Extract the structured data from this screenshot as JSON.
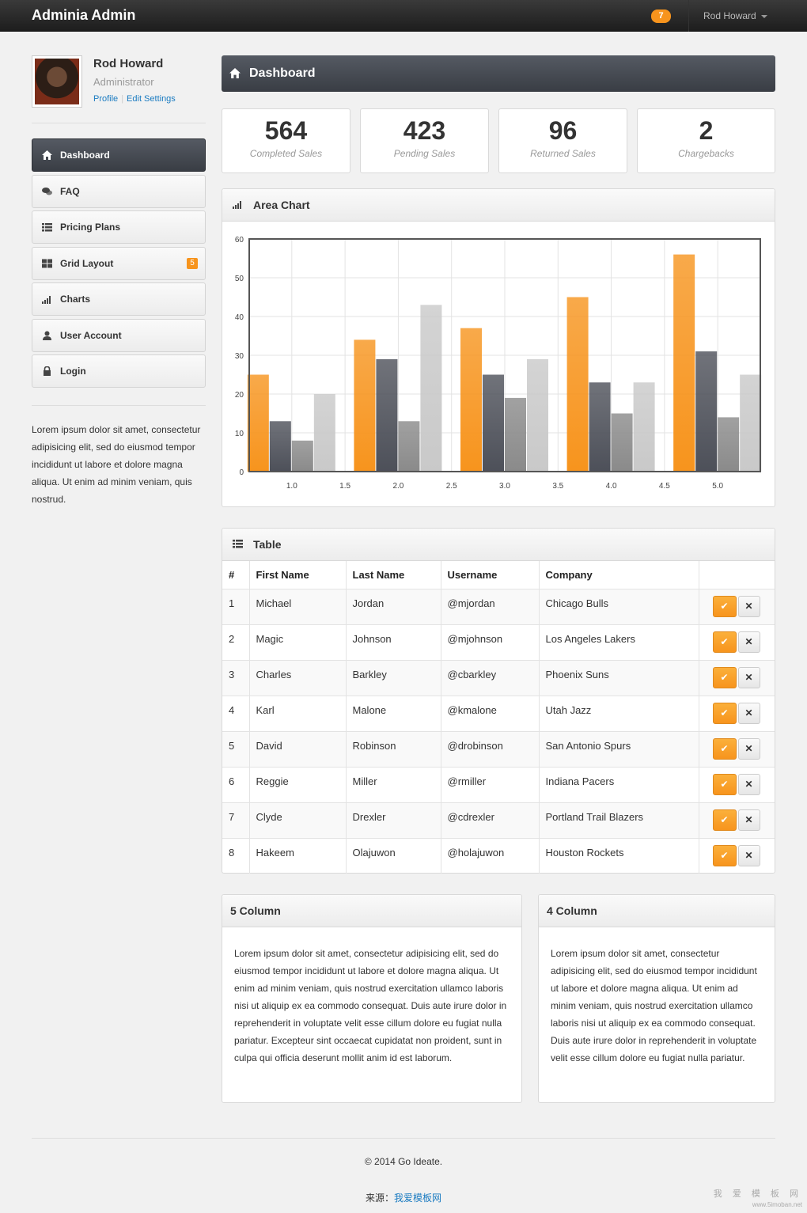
{
  "topbar": {
    "brand": "Adminia Admin",
    "notification_count": "7",
    "user_name": "Rod Howard"
  },
  "profile": {
    "name": "Rod Howard",
    "role": "Administrator",
    "profile_link": "Profile",
    "settings_link": "Edit Settings"
  },
  "nav": {
    "items": [
      {
        "label": "Dashboard",
        "icon": "home-icon"
      },
      {
        "label": "FAQ",
        "icon": "comments-icon"
      },
      {
        "label": "Pricing Plans",
        "icon": "list-icon"
      },
      {
        "label": "Grid Layout",
        "icon": "grid-icon",
        "badge": "5"
      },
      {
        "label": "Charts",
        "icon": "signal-icon"
      },
      {
        "label": "User Account",
        "icon": "user-icon"
      },
      {
        "label": "Login",
        "icon": "lock-icon"
      }
    ]
  },
  "sidebar_text": "Lorem ipsum dolor sit amet, consectetur adipisicing elit, sed do eiusmod tempor incididunt ut labore et dolore magna aliqua. Ut enim ad minim veniam, quis nostrud.",
  "dashboard": {
    "title": "Dashboard",
    "stats": [
      {
        "value": "564",
        "label": "Completed Sales"
      },
      {
        "value": "423",
        "label": "Pending Sales"
      },
      {
        "value": "96",
        "label": "Returned Sales"
      },
      {
        "value": "2",
        "label": "Chargebacks"
      }
    ]
  },
  "chart_panel": {
    "title": "Area Chart"
  },
  "chart_data": {
    "type": "bar",
    "title": "",
    "xlabel": "",
    "ylabel": "",
    "categories": [
      1,
      2,
      3,
      4,
      5
    ],
    "x_ticks": [
      "1.0",
      "1.5",
      "2.0",
      "2.5",
      "3.0",
      "3.5",
      "4.0",
      "4.5",
      "5.0"
    ],
    "y_ticks": [
      "0",
      "10",
      "20",
      "30",
      "40",
      "50",
      "60"
    ],
    "ylim": [
      0,
      60
    ],
    "grid": true,
    "series": [
      {
        "values": [
          25,
          34,
          37,
          45,
          56
        ],
        "color": "#f7941d"
      },
      {
        "values": [
          13,
          29,
          25,
          23,
          31
        ],
        "color": "#4d5059"
      },
      {
        "values": [
          8,
          13,
          19,
          15,
          14
        ],
        "color": "#8a8a8a"
      },
      {
        "values": [
          20,
          43,
          29,
          23,
          25
        ],
        "color": "#c9c9c9"
      }
    ]
  },
  "table": {
    "title": "Table",
    "headers": [
      "#",
      "First Name",
      "Last Name",
      "Username",
      "Company",
      ""
    ],
    "rows": [
      [
        "1",
        "Michael",
        "Jordan",
        "@mjordan",
        "Chicago Bulls"
      ],
      [
        "2",
        "Magic",
        "Johnson",
        "@mjohnson",
        "Los Angeles Lakers"
      ],
      [
        "3",
        "Charles",
        "Barkley",
        "@cbarkley",
        "Phoenix Suns"
      ],
      [
        "4",
        "Karl",
        "Malone",
        "@kmalone",
        "Utah Jazz"
      ],
      [
        "5",
        "David",
        "Robinson",
        "@drobinson",
        "San Antonio Spurs"
      ],
      [
        "6",
        "Reggie",
        "Miller",
        "@rmiller",
        "Indiana Pacers"
      ],
      [
        "7",
        "Clyde",
        "Drexler",
        "@cdrexler",
        "Portland Trail Blazers"
      ],
      [
        "8",
        "Hakeem",
        "Olajuwon",
        "@holajuwon",
        "Houston Rockets"
      ]
    ]
  },
  "col5": {
    "title": "5 Column",
    "text": "Lorem ipsum dolor sit amet, consectetur adipisicing elit, sed do eiusmod tempor incididunt ut labore et dolore magna aliqua. Ut enim ad minim veniam, quis nostrud exercitation ullamco laboris nisi ut aliquip ex ea commodo consequat. Duis aute irure dolor in reprehenderit in voluptate velit esse cillum dolore eu fugiat nulla pariatur. Excepteur sint occaecat cupidatat non proident, sunt in culpa qui officia deserunt mollit anim id est laborum."
  },
  "col4": {
    "title": "4 Column",
    "text": "Lorem ipsum dolor sit amet, consectetur adipisicing elit, sed do eiusmod tempor incididunt ut labore et dolore magna aliqua. Ut enim ad minim veniam, quis nostrud exercitation ullamco laboris nisi ut aliquip ex ea commodo consequat. Duis aute irure dolor in reprehenderit in voluptate velit esse cillum dolore eu fugiat nulla pariatur."
  },
  "footer": {
    "copyright": "© 2014 Go Ideate.",
    "source_label": "来源：",
    "source_link": "我爱模板网",
    "watermark_cn": "我 爱 模 板 网",
    "watermark_url": "www.5imoban.net"
  }
}
